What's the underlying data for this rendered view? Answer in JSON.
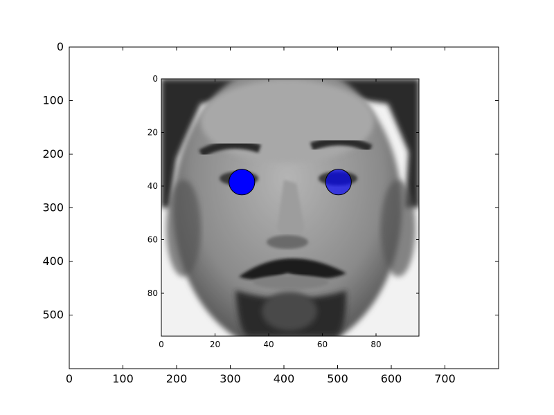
{
  "chart_data": [
    {
      "type": "image",
      "description_role": "outer-axes",
      "xlim": [
        0,
        800
      ],
      "ylim": [
        600,
        0
      ],
      "xticks": [
        0,
        100,
        200,
        300,
        400,
        500,
        600,
        700
      ],
      "yticks": [
        0,
        100,
        200,
        300,
        400,
        500
      ],
      "xtick_labels": [
        "0",
        "100",
        "200",
        "300",
        "400",
        "500",
        "600",
        "700"
      ],
      "ytick_labels": [
        "0",
        "100",
        "200",
        "300",
        "400",
        "500"
      ],
      "title": "",
      "xlabel": "",
      "ylabel": ""
    },
    {
      "type": "image",
      "description_role": "inset-axes",
      "content": "grayscale face photo",
      "xlim": [
        0,
        96
      ],
      "ylim": [
        96,
        0
      ],
      "xticks": [
        0,
        20,
        40,
        60,
        80
      ],
      "yticks": [
        0,
        20,
        40,
        60,
        80
      ],
      "xtick_labels": [
        "0",
        "20",
        "40",
        "60",
        "80"
      ],
      "ytick_labels": [
        "0",
        "20",
        "40",
        "60",
        "80"
      ],
      "points": [
        {
          "x": 30,
          "y": 38.5,
          "radius": 4.8,
          "color": "#0000ff",
          "opacity": 1.0
        },
        {
          "x": 66,
          "y": 38.5,
          "radius": 4.8,
          "color": "#0000ff",
          "opacity": 0.65
        }
      ],
      "title": "",
      "xlabel": "",
      "ylabel": ""
    }
  ],
  "colors": {
    "marker": "#0000ff",
    "axes": "#000000"
  }
}
